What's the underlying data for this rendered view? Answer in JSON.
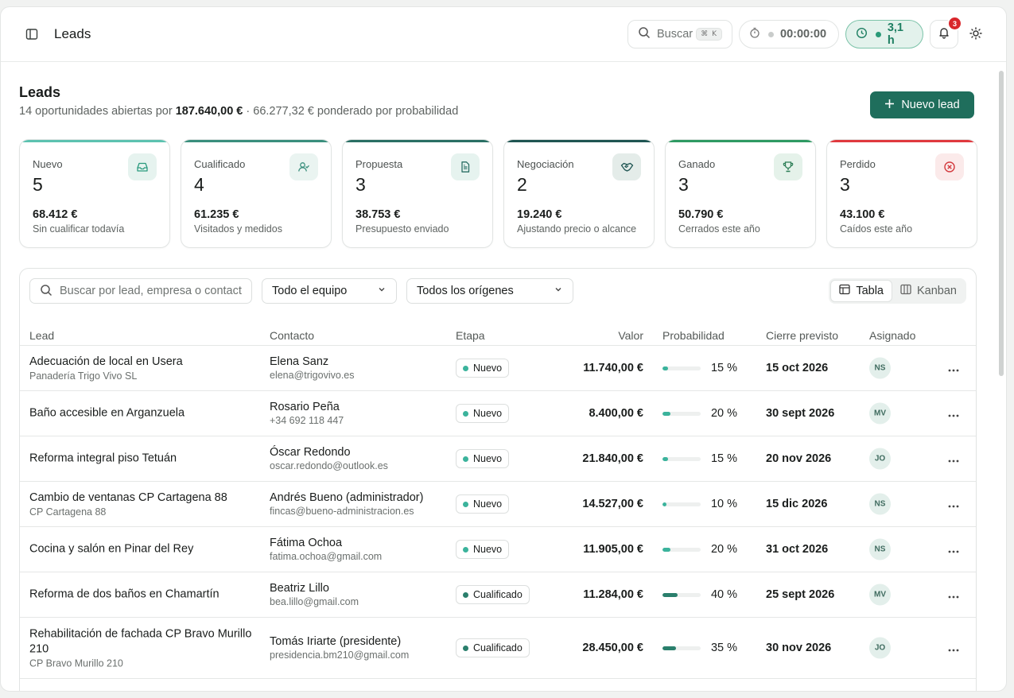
{
  "topbar": {
    "title": "Leads",
    "search_label": "Buscar",
    "search_kbd": "⌘ K",
    "timer": "00:00:00",
    "hours": "3,1 h",
    "notifications": "3"
  },
  "page": {
    "title": "Leads",
    "subtitle_pre": "14 oportunidades abiertas por ",
    "subtitle_total": "187.640,00 €",
    "subtitle_post": " · 66.277,32 € ponderado por probabilidad",
    "new_lead_label": "Nuevo lead"
  },
  "cards": [
    {
      "label": "Nuevo",
      "count": "5",
      "amount": "68.412 €",
      "desc": "Sin cualificar todavía",
      "accent": "#5cc2b0",
      "icon": "inbox-icon"
    },
    {
      "label": "Cualificado",
      "count": "4",
      "amount": "61.235 €",
      "desc": "Visitados y medidos",
      "accent": "#3a8f7d",
      "icon": "user-check-icon"
    },
    {
      "label": "Propuesta",
      "count": "3",
      "amount": "38.753 €",
      "desc": "Presupuesto enviado",
      "accent": "#2a6f64",
      "icon": "file-text-icon"
    },
    {
      "label": "Negociación",
      "count": "2",
      "amount": "19.240 €",
      "desc": "Ajustando precio o alcance",
      "accent": "#1f5552",
      "icon": "handshake-icon"
    },
    {
      "label": "Ganado",
      "count": "3",
      "amount": "50.790 €",
      "desc": "Cerrados este año",
      "accent": "#2f9a63",
      "icon": "trophy-icon"
    },
    {
      "label": "Perdido",
      "count": "3",
      "amount": "43.100 €",
      "desc": "Caídos este año",
      "accent": "#e0393e",
      "icon": "x-circle-icon"
    }
  ],
  "filters": {
    "search_placeholder": "Buscar por lead, empresa o contacto",
    "team": "Todo el equipo",
    "origin": "Todos los orígenes",
    "view_table": "Tabla",
    "view_kanban": "Kanban"
  },
  "table": {
    "headers": {
      "lead": "Lead",
      "contact": "Contacto",
      "stage": "Etapa",
      "value": "Valor",
      "probability": "Probabilidad",
      "close": "Cierre previsto",
      "assigned": "Asignado"
    },
    "rows": [
      {
        "lead": "Adecuación de local en Usera",
        "company": "Panadería Trigo Vivo SL",
        "contact": "Elena Sanz",
        "contact_sub": "elena@trigovivo.es",
        "stage": "Nuevo",
        "value": "11.740,00 €",
        "prob": 15,
        "prob_label": "15 %",
        "close": "15 oct 2026",
        "assigned": "NS"
      },
      {
        "lead": "Baño accesible en Arganzuela",
        "company": "",
        "contact": "Rosario Peña",
        "contact_sub": "+34 692 118 447",
        "stage": "Nuevo",
        "value": "8.400,00 €",
        "prob": 20,
        "prob_label": "20 %",
        "close": "30 sept 2026",
        "assigned": "MV"
      },
      {
        "lead": "Reforma integral piso Tetuán",
        "company": "",
        "contact": "Óscar Redondo",
        "contact_sub": "oscar.redondo@outlook.es",
        "stage": "Nuevo",
        "value": "21.840,00 €",
        "prob": 15,
        "prob_label": "15 %",
        "close": "20 nov 2026",
        "assigned": "JO"
      },
      {
        "lead": "Cambio de ventanas CP Cartagena 88",
        "company": "CP Cartagena 88",
        "contact": "Andrés Bueno (administrador)",
        "contact_sub": "fincas@bueno-administracion.es",
        "stage": "Nuevo",
        "value": "14.527,00 €",
        "prob": 10,
        "prob_label": "10 %",
        "close": "15 dic 2026",
        "assigned": "NS"
      },
      {
        "lead": "Cocina y salón en Pinar del Rey",
        "company": "",
        "contact": "Fátima Ochoa",
        "contact_sub": "fatima.ochoa@gmail.com",
        "stage": "Nuevo",
        "value": "11.905,00 €",
        "prob": 20,
        "prob_label": "20 %",
        "close": "31 oct 2026",
        "assigned": "NS"
      },
      {
        "lead": "Reforma de dos baños en Chamartín",
        "company": "",
        "contact": "Beatriz Lillo",
        "contact_sub": "bea.lillo@gmail.com",
        "stage": "Cualificado",
        "value": "11.284,00 €",
        "prob": 40,
        "prob_label": "40 %",
        "close": "25 sept 2026",
        "assigned": "MV"
      },
      {
        "lead": "Rehabilitación de fachada CP Bravo Murillo 210",
        "company": "CP Bravo Murillo 210",
        "contact": "Tomás Iriarte (presidente)",
        "contact_sub": "presidencia.bm210@gmail.com",
        "stage": "Cualificado",
        "value": "28.450,00 €",
        "prob": 35,
        "prob_label": "35 %",
        "close": "30 nov 2026",
        "assigned": "JO"
      }
    ]
  },
  "colors": {
    "stage_nuevo": "#3bb39c",
    "stage_cualificado": "#2a7f6c",
    "accent": "#1f6e5c"
  }
}
